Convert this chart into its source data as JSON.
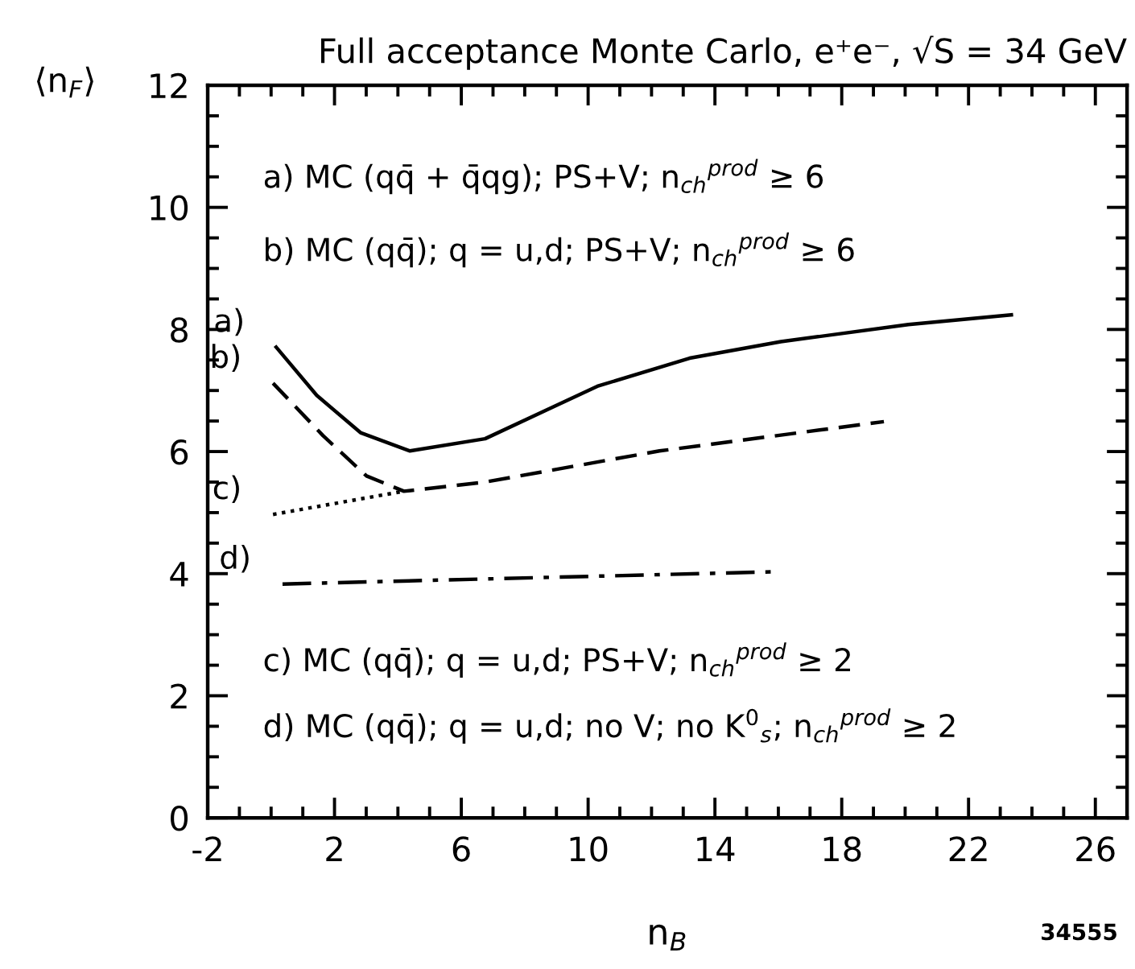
{
  "chart_data": {
    "type": "line",
    "title": "Full acceptance Monte Carlo, e⁺e⁻, √S = 34 GeV",
    "xlabel": "n$_{B}$",
    "ylabel": "⟨n$_{F}$⟩",
    "xlim": [
      -2,
      27
    ],
    "xticks": [
      -2,
      {
        "value": -1,
        "label": null
      },
      {
        "value": 0,
        "label": null
      },
      {
        "value": 1,
        "label": null
      },
      2,
      {
        "value": 3,
        "label": null
      },
      {
        "value": 4,
        "label": null
      },
      {
        "value": 5,
        "label": null
      },
      6,
      {
        "value": 7,
        "label": null
      },
      {
        "value": 8,
        "label": null
      },
      {
        "value": 9,
        "label": null
      },
      10,
      {
        "value": 11,
        "label": null
      },
      {
        "value": 12,
        "label": null
      },
      {
        "value": 13,
        "label": null
      },
      14,
      {
        "value": 15,
        "label": null
      },
      {
        "value": 16,
        "label": null
      },
      {
        "value": 17,
        "label": null
      },
      18,
      {
        "value": 19,
        "label": null
      },
      {
        "value": 20,
        "label": null
      },
      {
        "value": 21,
        "label": null
      },
      22,
      {
        "value": 23,
        "label": null
      },
      {
        "value": 24,
        "label": null
      },
      {
        "value": 25,
        "label": null
      },
      26
    ],
    "ylim": [
      0,
      12
    ],
    "yticks": [
      0,
      {
        "value": 0.5,
        "label": null
      },
      {
        "value": 1,
        "label": null
      },
      {
        "value": 1.5,
        "label": null
      },
      2,
      {
        "value": 2.5,
        "label": null
      },
      {
        "value": 3,
        "label": null
      },
      {
        "value": 3.5,
        "label": null
      },
      4,
      {
        "value": 4.5,
        "label": null
      },
      {
        "value": 5,
        "label": null
      },
      {
        "value": 5.5,
        "label": null
      },
      6,
      {
        "value": 6.5,
        "label": null
      },
      {
        "value": 7,
        "label": null
      },
      {
        "value": 7.5,
        "label": null
      },
      8,
      {
        "value": 8.5,
        "label": null
      },
      {
        "value": 9,
        "label": null
      },
      {
        "value": 9.5,
        "label": null
      },
      10,
      {
        "value": 10.5,
        "label": null
      },
      {
        "value": 11,
        "label": null
      },
      {
        "value": 11.5,
        "label": null
      },
      12
    ],
    "grid": false,
    "legend": false,
    "series": [
      {
        "color": "#000000",
        "line_style": "solid",
        "x": [
          0.16,
          1.44,
          2.82,
          4.38,
          6.75,
          10.29,
          13.2,
          16.08,
          20.1,
          23.35
        ],
        "values": [
          7.71,
          6.92,
          6.31,
          6.01,
          6.21,
          7.07,
          7.53,
          7.8,
          8.08,
          8.24
        ]
      },
      {
        "color": "#000000",
        "line_style": "dashed",
        "x": [
          0.06,
          1.64,
          3.01,
          4.19,
          6.75,
          12.25,
          19.33
        ],
        "values": [
          7.12,
          6.26,
          5.6,
          5.35,
          5.5,
          6.01,
          6.49
        ]
      },
      {
        "color": "#000000",
        "line_style": "dotted",
        "x": [
          0.06,
          4.19
        ],
        "values": [
          4.97,
          5.35
        ]
      },
      {
        "color": "#000000",
        "line_style": "dashdot",
        "x": [
          0.36,
          15.79
        ],
        "values": [
          3.83,
          4.03
        ]
      }
    ],
    "annotations": [
      "a) MC (qq̄ + q̄qg); PS+V; n$_{ch}$$^{prod}$ ≥ 6",
      "b) MC (qq̄); q = u,d; PS+V; n$_{ch}$$^{prod}$ ≥ 6",
      "c) MC (qq̄); q = u,d; PS+V; n$_{ch}$$^{prod}$ ≥ 2",
      "d) MC (qq̄); q = u,d; no V; no K$^{0}$$_{s}$; n$_{ch}$$^{prod}$ ≥ 2",
      {
        "text": "a)",
        "x": 0.16,
        "y": 7.71
      },
      {
        "text": "b)",
        "x": 0.06,
        "y": 7.12
      },
      {
        "text": "c)",
        "x": 0.06,
        "y": 4.97
      },
      {
        "text": "d)",
        "x": 0.36,
        "y": 3.83
      },
      "34555"
    ]
  }
}
